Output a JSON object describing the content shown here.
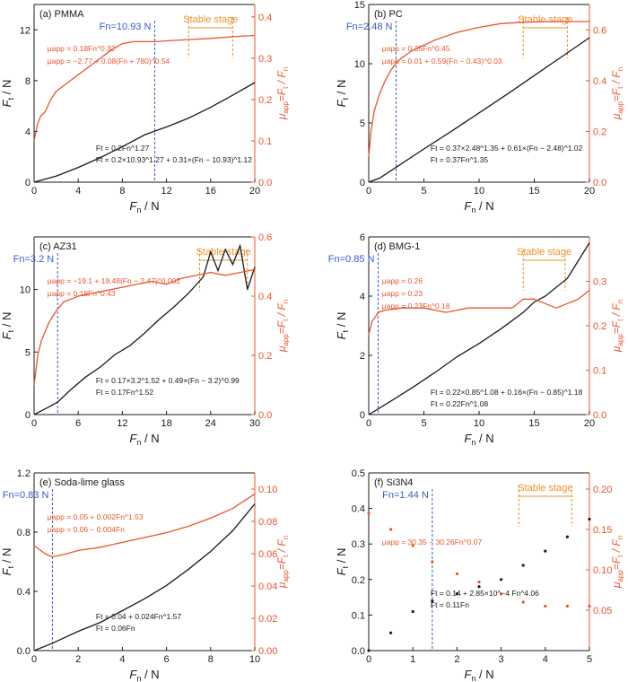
{
  "figure": {
    "colors": {
      "black": "#1a1a1a",
      "red": "#e8552d",
      "blue": "#3b5bc9",
      "orange": "#f0902c"
    },
    "xlabel_main": "F",
    "xlabel_sub": "n",
    "xlabel_unit": " / N",
    "ylabel_left_main": "F",
    "ylabel_left_sub": "t",
    "ylabel_left_unit": " / N",
    "ylabel_right_mu": "μ",
    "ylabel_right_sub": "app",
    "ylabel_right_eq": "=F",
    "ylabel_right_t": "t",
    "ylabel_right_slash": " / F",
    "ylabel_right_n": "n"
  },
  "chart_data": [
    {
      "type": "line",
      "panel": "(a)",
      "material": "PMMA",
      "xlim": [
        0,
        20
      ],
      "xticks": [
        "0",
        "4",
        "8",
        "12",
        "16",
        "20"
      ],
      "ylim_left": [
        0,
        14
      ],
      "yticks_left": [
        "0",
        "4",
        "8",
        "12"
      ],
      "yticks_left_values": [
        0,
        4,
        8,
        12
      ],
      "ylim_right": [
        0,
        0.43
      ],
      "yticks_right": [
        "0.0",
        "0.1",
        "0.2",
        "0.3",
        "0.4"
      ],
      "yticks_right_values": [
        0,
        0.1,
        0.2,
        0.3,
        0.4
      ],
      "critical_label": "Fn=10.93 N",
      "critical_x": 10.93,
      "stable_label": "Stable stage",
      "stable_range": [
        14,
        18
      ],
      "ft_x": [
        0,
        2,
        4,
        6,
        8,
        10,
        10.93,
        12,
        14,
        16,
        18,
        20
      ],
      "ft_y": [
        0,
        0.48,
        1.16,
        1.94,
        2.8,
        3.72,
        4.02,
        4.35,
        5.05,
        5.9,
        6.85,
        7.85
      ],
      "mu_x": [
        0,
        0.3,
        0.6,
        1,
        1.5,
        2,
        3,
        4,
        5,
        6,
        7,
        8,
        9,
        10,
        11,
        12,
        14,
        16,
        18,
        20
      ],
      "mu_y": [
        0.1,
        0.14,
        0.16,
        0.17,
        0.2,
        0.22,
        0.24,
        0.26,
        0.28,
        0.3,
        0.32,
        0.335,
        0.34,
        0.34,
        0.34,
        0.342,
        0.345,
        0.348,
        0.352,
        0.355
      ],
      "annotations": [
        "μapp = 0.18Fn^0.32",
        "μapp = −2.77 + 0.08(Fn + 780)^0.54",
        "Ft = 0.2Fn^1.27",
        "Ft = 0.2×10.93^1.27 + 0.31×(Fn − 10.93)^1.12"
      ]
    },
    {
      "type": "line",
      "panel": "(b)",
      "material": "PC",
      "xlim": [
        0,
        20
      ],
      "xticks": [
        "0",
        "5",
        "10",
        "15",
        "20"
      ],
      "ylim_left": [
        0,
        15
      ],
      "yticks_left": [
        "0",
        "5",
        "10",
        "15"
      ],
      "yticks_left_values": [
        0,
        5,
        10,
        15
      ],
      "ylim_right": [
        0,
        0.7
      ],
      "yticks_right": [
        "0.0",
        "0.2",
        "0.4",
        "0.6"
      ],
      "yticks_right_values": [
        0,
        0.2,
        0.4,
        0.6
      ],
      "critical_label": "Fn=2.48 N",
      "critical_x": 2.48,
      "stable_label": "Stable stage",
      "stable_range": [
        14,
        18
      ],
      "ft_x": [
        0,
        1,
        2.48,
        5,
        7.5,
        10,
        12.5,
        15,
        17.5,
        20
      ],
      "ft_y": [
        0,
        0.35,
        1.26,
        2.8,
        4.3,
        5.85,
        7.4,
        9.0,
        10.6,
        12.2
      ],
      "mu_x": [
        0,
        0.2,
        0.5,
        1,
        1.5,
        2,
        2.48,
        3,
        4,
        5,
        6,
        8,
        10,
        12,
        14,
        16,
        18,
        20
      ],
      "mu_y": [
        0.1,
        0.2,
        0.28,
        0.35,
        0.4,
        0.44,
        0.47,
        0.49,
        0.52,
        0.54,
        0.56,
        0.59,
        0.61,
        0.625,
        0.63,
        0.632,
        0.633,
        0.633
      ],
      "annotations": [
        "μapp = 0.35Fn^0.45",
        "μapp = 0.01 + 0.59(Fn − 0.43)^0.03",
        "Ft = 0.37×2.48^1.35 + 0.61×(Fn − 2.48)^1.02",
        "Ft = 0.37Fn^1.35"
      ]
    },
    {
      "type": "line",
      "panel": "(c)",
      "material": "AZ31",
      "xlim": [
        0,
        30
      ],
      "xticks": [
        "0",
        "6",
        "12",
        "18",
        "24",
        "30"
      ],
      "ylim_left": [
        0,
        14.2
      ],
      "yticks_left": [
        "0",
        "5",
        "10"
      ],
      "yticks_left_values": [
        0,
        5,
        10
      ],
      "ylim_right": [
        0,
        0.6
      ],
      "yticks_right": [
        "0.0",
        "0.2",
        "0.4",
        "0.6"
      ],
      "yticks_right_values": [
        0,
        0.2,
        0.4,
        0.6
      ],
      "critical_label": "Fn=3.2 N",
      "critical_x": 3.2,
      "stable_label": "Stable stage",
      "stable_range": [
        22.5,
        29
      ],
      "ft_x": [
        0,
        1,
        2,
        3.2,
        5,
        7,
        9,
        11,
        13,
        15,
        17,
        19,
        21,
        23,
        24,
        25,
        26,
        27,
        28,
        29,
        30
      ],
      "ft_y": [
        0,
        0.3,
        0.6,
        1.0,
        2.0,
        3.0,
        3.8,
        4.8,
        5.5,
        6.5,
        7.6,
        8.6,
        9.7,
        11.0,
        13.0,
        11.5,
        13.2,
        12.0,
        13.5,
        10.0,
        11.8
      ],
      "mu_x": [
        0,
        0.5,
        1,
        1.5,
        2,
        3,
        4,
        5,
        6,
        8,
        10,
        12,
        14,
        16,
        18,
        20,
        22,
        24,
        26,
        28,
        30
      ],
      "mu_y": [
        0.1,
        0.2,
        0.25,
        0.28,
        0.31,
        0.35,
        0.38,
        0.39,
        0.4,
        0.41,
        0.42,
        0.43,
        0.44,
        0.45,
        0.44,
        0.46,
        0.47,
        0.48,
        0.47,
        0.48,
        0.49
      ],
      "annotations": [
        "μapp = −19.1 + 19.48(Fn − 2.47)^0.002",
        "μapp = 0.18Fn^0.43",
        "Ft = 0.17×3.2^1.52 + 0.49×(Fn − 3.2)^0.99",
        "Ft = 0.17Fn^1.52"
      ]
    },
    {
      "type": "line",
      "panel": "(d)",
      "material": "BMG-1",
      "xlim": [
        0,
        20
      ],
      "xticks": [
        "0",
        "5",
        "10",
        "15",
        "20"
      ],
      "ylim_left": [
        0,
        6
      ],
      "yticks_left": [
        "0",
        "2",
        "4",
        "6"
      ],
      "yticks_left_values": [
        0,
        2,
        4,
        6
      ],
      "ylim_right": [
        0,
        0.4
      ],
      "yticks_right": [
        "0.0",
        "0.1",
        "0.2",
        "0.3"
      ],
      "yticks_right_values": [
        0,
        0.1,
        0.2,
        0.3
      ],
      "critical_label": "Fn=0.85 N",
      "critical_x": 0.85,
      "stable_label": "Stable stage",
      "stable_range": [
        14,
        17.8
      ],
      "ft_x": [
        0,
        0.85,
        2,
        4,
        6,
        8,
        10,
        12,
        14,
        15,
        16,
        18,
        20
      ],
      "ft_y": [
        0,
        0.19,
        0.45,
        0.92,
        1.42,
        1.95,
        2.4,
        2.9,
        3.45,
        3.8,
        4.0,
        4.6,
        5.8
      ],
      "mu_x": [
        0,
        0.3,
        0.6,
        0.85,
        1.5,
        3,
        5,
        7,
        9,
        11,
        13,
        14,
        15,
        16,
        17,
        18,
        19,
        20
      ],
      "mu_y": [
        0.18,
        0.21,
        0.22,
        0.23,
        0.235,
        0.24,
        0.24,
        0.23,
        0.24,
        0.24,
        0.24,
        0.26,
        0.26,
        0.25,
        0.24,
        0.25,
        0.26,
        0.28
      ],
      "annotations": [
        "μapp = 0.26",
        "μapp = 0.23",
        "μapp = 0.23Fn^0.18",
        "Ft = 0.22×0.85^1.08 + 0.16×(Fn − 0.85)^1.18",
        "Ft = 0.22Fn^1.08"
      ]
    },
    {
      "type": "line",
      "panel": "(e)",
      "material": "Soda-lime glass",
      "xlim": [
        0,
        10
      ],
      "xticks": [
        "0",
        "2",
        "4",
        "6",
        "8",
        "10"
      ],
      "ylim_left": [
        0,
        1.2
      ],
      "yticks_left": [
        "0.0",
        "0.4",
        "0.8",
        "1.2"
      ],
      "yticks_left_values": [
        0,
        0.4,
        0.8,
        1.2
      ],
      "ylim_right": [
        0,
        0.11
      ],
      "yticks_right": [
        "0.00",
        "0.02",
        "0.04",
        "0.06",
        "0.08",
        "0.10"
      ],
      "yticks_right_values": [
        0,
        0.02,
        0.04,
        0.06,
        0.08,
        0.1
      ],
      "critical_label": "Fn=0.83 N",
      "critical_x": 0.83,
      "ft_x": [
        0,
        0.83,
        2,
        3,
        4,
        5,
        6,
        7,
        8,
        9,
        10
      ],
      "ft_y": [
        0,
        0.05,
        0.13,
        0.19,
        0.27,
        0.35,
        0.44,
        0.55,
        0.67,
        0.81,
        0.99
      ],
      "mu_x": [
        0,
        0.5,
        0.83,
        1.5,
        2,
        3,
        4,
        5,
        6,
        7,
        8,
        9,
        10
      ],
      "mu_y": [
        0.065,
        0.06,
        0.058,
        0.06,
        0.062,
        0.064,
        0.067,
        0.07,
        0.073,
        0.077,
        0.082,
        0.088,
        0.097
      ],
      "annotations": [
        "μapp = 0.05 + 0.002Fn^1.53",
        "μapp = 0.06 − 0.004Fn",
        "Ft = 0.04 + 0.024Fn^1.57",
        "Ft = 0.06Fn"
      ]
    },
    {
      "type": "scatter",
      "panel": "(f)",
      "material": "Si3N4",
      "xlim": [
        0,
        5
      ],
      "xticks": [
        "0",
        "1",
        "2",
        "3",
        "4",
        "5"
      ],
      "ylim_left": [
        0,
        0.5
      ],
      "yticks_left": [
        "0.0",
        "0.1",
        "0.2",
        "0.3",
        "0.4",
        "0.5"
      ],
      "yticks_left_values": [
        0,
        0.1,
        0.2,
        0.3,
        0.4,
        0.5
      ],
      "ylim_right": [
        0,
        0.22
      ],
      "yticks_right": [
        "0.05",
        "0.10",
        "0.15",
        "0.20"
      ],
      "yticks_right_values": [
        0.05,
        0.1,
        0.15,
        0.2
      ],
      "critical_label": "Fn=1.44 N",
      "critical_x": 1.44,
      "stable_label": "Stable stage",
      "stable_range": [
        3.4,
        4.6
      ],
      "ft_x": [
        0,
        0.5,
        1,
        1.44,
        2,
        2.5,
        3,
        3.5,
        4,
        4.5,
        5
      ],
      "ft_y": [
        0.0,
        0.05,
        0.11,
        0.14,
        0.16,
        0.18,
        0.2,
        0.24,
        0.28,
        0.32,
        0.37
      ],
      "mu_x": [
        0,
        0.5,
        1,
        1.44,
        2,
        2.5,
        3,
        3.5,
        4,
        4.5,
        5
      ],
      "mu_y": [
        0.17,
        0.15,
        0.13,
        0.11,
        0.095,
        0.085,
        0.07,
        0.06,
        0.055,
        0.055,
        0.055
      ],
      "annotations": [
        "Ft = 0.14 + 2.85×10^−4 Fn^4.06",
        "Ft = 0.11Fn",
        "μapp = 30.35 − 30.26Fn^0.07"
      ]
    }
  ]
}
